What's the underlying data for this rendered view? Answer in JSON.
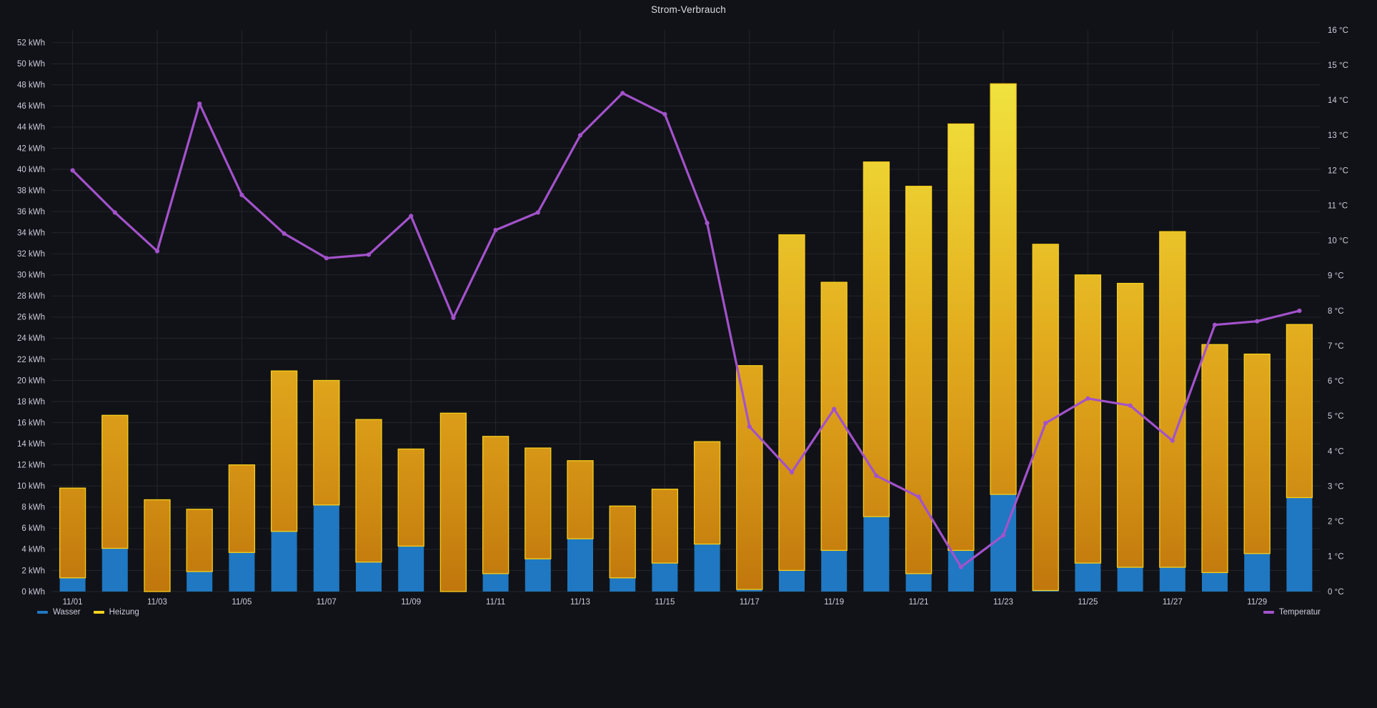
{
  "panel": {
    "title": "Strom-Verbrauch"
  },
  "legend": {
    "wasser": "Wasser",
    "heizung": "Heizung",
    "temperatur": "Temperatur"
  },
  "colors": {
    "background": "#111217",
    "grid": "#23252B",
    "axis_text": "#CCCCDC",
    "title_text": "#DBDBDF",
    "wasser_blue": "#1F78C1",
    "heizung_border": "#F5CE1B",
    "heizung_gradient_bottom": "#C0760C",
    "heizung_gradient_top": "#F2EC4E",
    "temperatur_purple": "#A352CC"
  },
  "chart_data": {
    "type": "bar",
    "note": "stacked bars (Wasser + Heizung, left axis kWh) with Temperatur line on right axis °C",
    "title": "Strom-Verbrauch",
    "categories": [
      "11/01",
      "11/02",
      "11/03",
      "11/04",
      "11/05",
      "11/06",
      "11/07",
      "11/08",
      "11/09",
      "11/10",
      "11/11",
      "11/12",
      "11/13",
      "11/14",
      "11/15",
      "11/16",
      "11/17",
      "11/18",
      "11/19",
      "11/20",
      "11/21",
      "11/22",
      "11/23",
      "11/24",
      "11/25",
      "11/26",
      "11/27",
      "11/28",
      "11/29",
      "11/30"
    ],
    "series": [
      {
        "name": "Wasser",
        "type": "bar",
        "stack": true,
        "unit": "kWh",
        "axis": "left",
        "values": [
          1.3,
          4.1,
          0,
          1.9,
          3.7,
          5.7,
          8.2,
          2.8,
          4.3,
          0,
          1.7,
          3.1,
          5.0,
          1.3,
          2.7,
          4.5,
          0.2,
          2.0,
          3.9,
          7.1,
          1.7,
          3.9,
          9.2,
          0.1,
          2.7,
          2.3,
          2.3,
          1.8,
          3.6,
          8.9
        ]
      },
      {
        "name": "Heizung",
        "type": "bar",
        "stack": true,
        "unit": "kWh",
        "axis": "left",
        "values": [
          8.5,
          12.6,
          8.7,
          5.9,
          8.3,
          15.2,
          11.8,
          13.5,
          9.2,
          16.9,
          13.0,
          10.5,
          7.4,
          6.8,
          7.0,
          9.7,
          21.2,
          31.8,
          25.4,
          33.6,
          36.7,
          40.4,
          38.9,
          32.8,
          27.3,
          26.9,
          31.8,
          21.6,
          18.9,
          16.4
        ]
      },
      {
        "name": "Temperatur",
        "type": "line",
        "unit": "°C",
        "axis": "right",
        "values": [
          12.0,
          10.8,
          9.7,
          13.9,
          11.3,
          10.2,
          9.5,
          9.6,
          10.7,
          7.8,
          10.3,
          10.8,
          13.0,
          14.2,
          13.6,
          10.5,
          4.7,
          3.4,
          5.2,
          3.3,
          2.7,
          0.7,
          1.6,
          4.8,
          5.5,
          5.3,
          4.3,
          7.6,
          7.7,
          8.0
        ]
      }
    ],
    "y_left": {
      "min": 0,
      "max_display": 52,
      "max_plot": 53.2,
      "tick_step": 2,
      "tick_labels": [
        "0 kWh",
        "2 kWh",
        "4 kWh",
        "6 kWh",
        "8 kWh",
        "10 kWh",
        "12 kWh",
        "14 kWh",
        "16 kWh",
        "18 kWh",
        "20 kWh",
        "22 kWh",
        "24 kWh",
        "26 kWh",
        "28 kWh",
        "30 kWh",
        "32 kWh",
        "34 kWh",
        "36 kWh",
        "38 kWh",
        "40 kWh",
        "42 kWh",
        "44 kWh",
        "46 kWh",
        "48 kWh",
        "50 kWh",
        "52 kWh"
      ]
    },
    "y_right": {
      "min": 0,
      "max": 16,
      "tick_step": 1,
      "tick_labels": [
        "0 °C",
        "1 °C",
        "2 °C",
        "3 °C",
        "4 °C",
        "5 °C",
        "6 °C",
        "7 °C",
        "8 °C",
        "9 °C",
        "10 °C",
        "11 °C",
        "12 °C",
        "13 °C",
        "14 °C",
        "15 °C",
        "16 °C"
      ]
    },
    "x_tick_labels": [
      "11/01",
      "11/03",
      "11/05",
      "11/07",
      "11/09",
      "11/11",
      "11/13",
      "11/15",
      "11/17",
      "11/19",
      "11/21",
      "11/23",
      "11/25",
      "11/27",
      "11/29"
    ],
    "grid": true,
    "legend_position": "bottom"
  }
}
